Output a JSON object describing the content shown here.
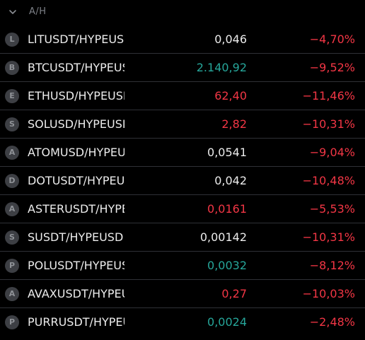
{
  "section": {
    "title": "A/H",
    "toggle_icon": "chevron-down-icon"
  },
  "colors": {
    "up": "#26a69a",
    "down": "#f23645",
    "neutral": "#ececec"
  },
  "rows": [
    {
      "badge": "L",
      "symbol": "LITUSDT/HYPEUSD",
      "price": "0,046",
      "price_color": "neutral",
      "change": "−4,70%"
    },
    {
      "badge": "B",
      "symbol": "BTCUSDT/HYPEUSD",
      "price": "2.140,92",
      "price_color": "up",
      "change": "−9,52%"
    },
    {
      "badge": "E",
      "symbol": "ETHUSD/HYPEUSD",
      "price": "62,40",
      "price_color": "down",
      "change": "−11,46%"
    },
    {
      "badge": "S",
      "symbol": "SOLUSD/HYPEUSD",
      "price": "2,82",
      "price_color": "down",
      "change": "−10,31%"
    },
    {
      "badge": "A",
      "symbol": "ATOMUSD/HYPEUSD",
      "price": "0,0541",
      "price_color": "neutral",
      "change": "−9,04%"
    },
    {
      "badge": "D",
      "symbol": "DOTUSDT/HYPEUSD",
      "price": "0,042",
      "price_color": "neutral",
      "change": "−10,48%"
    },
    {
      "badge": "A",
      "symbol": "ASTERUSDT/HYPEUSD",
      "price": "0,0161",
      "price_color": "down",
      "change": "−5,53%"
    },
    {
      "badge": "S",
      "symbol": "SUSDT/HYPEUSD",
      "price": "0,00142",
      "price_color": "neutral",
      "change": "−10,31%"
    },
    {
      "badge": "P",
      "symbol": "POLUSDT/HYPEUSD",
      "price": "0,0032",
      "price_color": "up",
      "change": "−8,12%"
    },
    {
      "badge": "A",
      "symbol": "AVAXUSDT/HYPEUSD",
      "price": "0,27",
      "price_color": "down",
      "change": "−10,03%"
    },
    {
      "badge": "P",
      "symbol": "PURRUSDT/HYPEUSD",
      "price": "0,0024",
      "price_color": "up",
      "change": "−2,48%"
    }
  ]
}
